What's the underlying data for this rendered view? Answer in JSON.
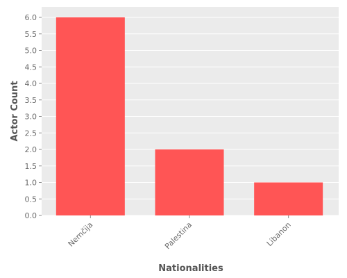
{
  "chart_data": {
    "type": "bar",
    "categories": [
      "Nemčija",
      "Palestina",
      "Libanon"
    ],
    "values": [
      6,
      2,
      1
    ],
    "title": "",
    "xlabel": "Nationalities",
    "ylabel": "Actor Count",
    "ylim": [
      0,
      6.2
    ],
    "yticks": [
      "0.0",
      "0.5",
      "1.0",
      "1.5",
      "2.0",
      "2.5",
      "3.0",
      "3.5",
      "4.0",
      "4.5",
      "5.0",
      "5.5",
      "6.0"
    ],
    "grid": true,
    "legend": "none",
    "colors": {
      "bar": "#ff5555",
      "plot_background": "#ebebeb",
      "grid": "#ffffff"
    }
  }
}
